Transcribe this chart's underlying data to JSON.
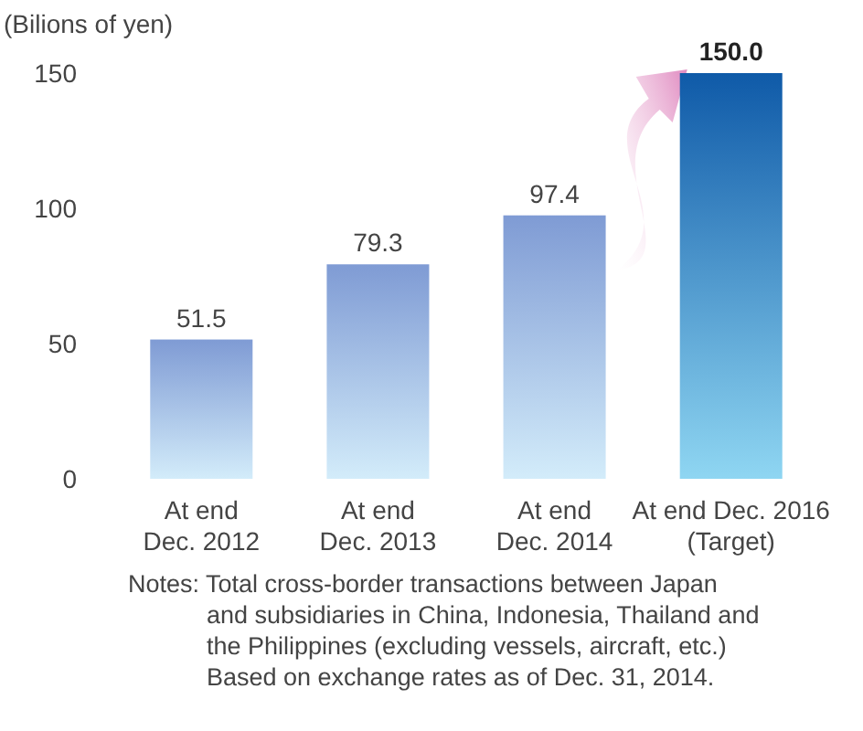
{
  "chart_data": {
    "type": "bar",
    "ylabel": "(Bilions of yen)",
    "categories": [
      "At end\nDec. 2012",
      "At end\nDec. 2013",
      "At end\nDec. 2014",
      "At end Dec. 2016\n(Target)"
    ],
    "values": [
      51.5,
      79.3,
      97.4,
      150.0
    ],
    "colors": [
      "#7f9bd4",
      "#7f9bd4",
      "#7f9bd4",
      "#0f5aa8"
    ],
    "value_labels": [
      "51.5",
      "79.3",
      "97.4",
      "150.0"
    ],
    "ylim": [
      0,
      150
    ],
    "yticks": [
      0,
      50,
      100,
      150
    ],
    "grid": false,
    "annotations": [
      "Notes: Total cross-border transactions between Japan\nand subsidiaries in China, Indonesia, Thailand and\nthe Philippines (excluding vessels, aircraft, etc.)\nBased on exchange rates as of Dec. 31, 2014."
    ]
  }
}
